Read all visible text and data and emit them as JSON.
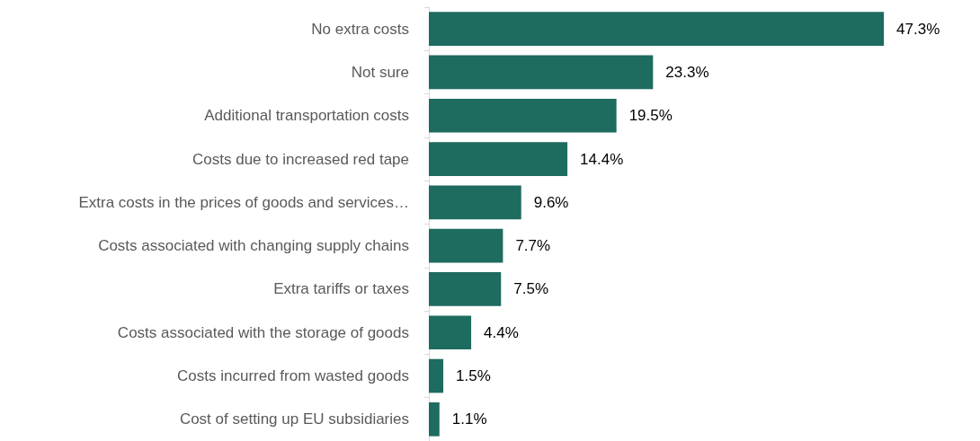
{
  "chart_data": {
    "type": "bar",
    "orientation": "horizontal",
    "categories": [
      "No extra costs",
      "Not sure",
      "Additional transportation costs",
      "Costs due to increased red tape",
      "Extra costs in the prices of goods and services…",
      "Costs associated with changing supply chains",
      "Extra tariffs or taxes",
      "Costs associated with the storage of goods",
      "Costs incurred from wasted goods",
      "Cost of setting up EU subsidiaries"
    ],
    "values": [
      47.3,
      23.3,
      19.5,
      14.4,
      9.6,
      7.7,
      7.5,
      4.4,
      1.5,
      1.1
    ],
    "value_labels": [
      "47.3%",
      "23.3%",
      "19.5%",
      "14.4%",
      "9.6%",
      "7.7%",
      "7.5%",
      "4.4%",
      "1.5%",
      "1.1%"
    ],
    "color": "#1e6b5f",
    "tick_labels": "y"
  }
}
